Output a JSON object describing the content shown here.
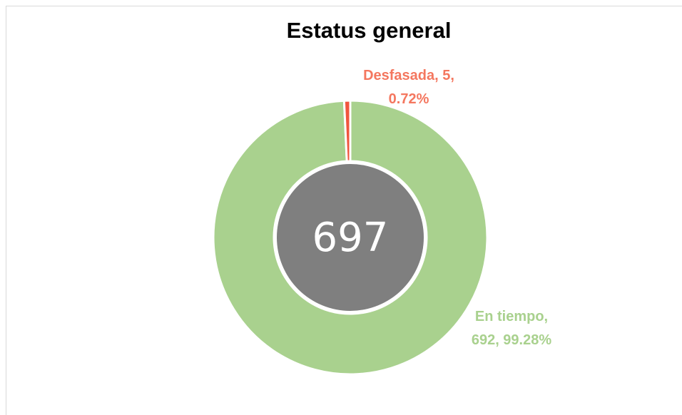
{
  "chart_data": {
    "type": "donut",
    "title": "Estatus general",
    "categories": [
      "En tiempo",
      "Desfasada"
    ],
    "values": [
      692,
      5
    ],
    "value_labels": [
      "En tiempo, 692, 99.28%",
      "Desfasada, 5, 0.72%"
    ],
    "colors": [
      "#a9d18e",
      "#f0553e"
    ],
    "label_colors": [
      "#a9d18e",
      "#f4775f"
    ],
    "total": 697
  }
}
